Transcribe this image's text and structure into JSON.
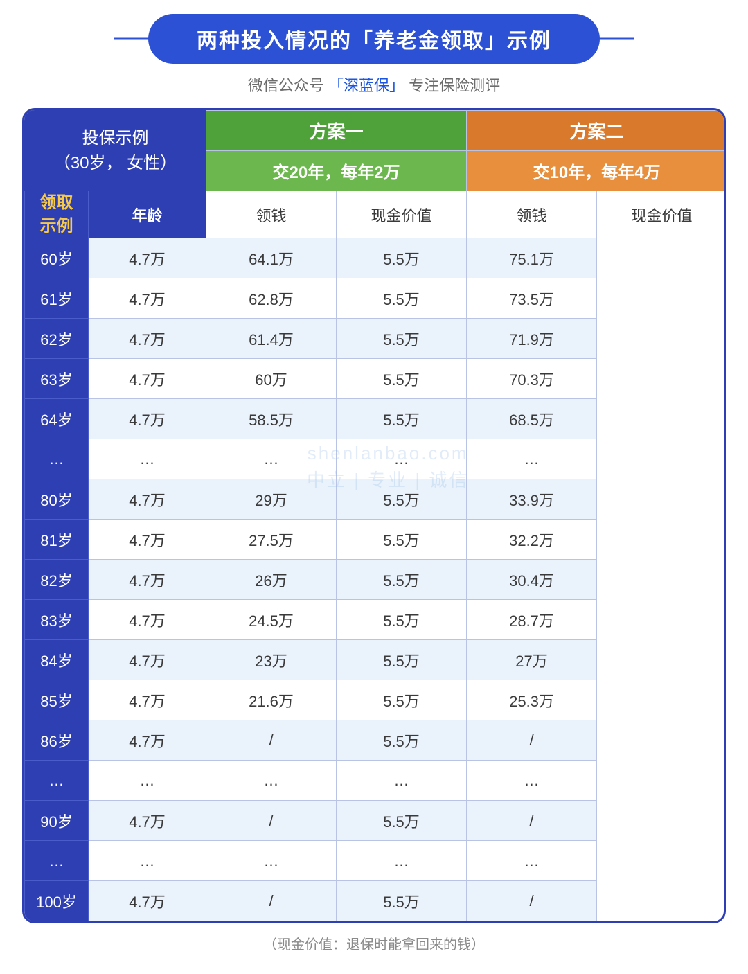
{
  "title": "两种投入情况的「养老金领取」示例",
  "subtitle_prefix": "微信公众号",
  "subtitle_brand": "「深蓝保」",
  "subtitle_suffix": "专注保险测评",
  "header": {
    "example_label_line1": "投保示例",
    "example_label_line2": "（30岁， 女性）",
    "plan1_name": "方案一",
    "plan1_desc": "交20年，每年2万",
    "plan2_name": "方案二",
    "plan2_desc": "交10年，每年4万",
    "side_label_line1": "领取",
    "side_label_line2": "示例",
    "col_age": "年龄",
    "col_receive": "领钱",
    "col_cash": "现金价值"
  },
  "colors": {
    "accent_blue": "#2d3fb3",
    "plan1_top": "#4fa13a",
    "plan1_sub": "#6cb84e",
    "plan2_top": "#d8792b",
    "plan2_sub": "#e88f3d",
    "row_alt_bg": "#eaf2fb",
    "side_text": "#f7c948",
    "border": "#b9c3e4"
  },
  "rows": [
    {
      "age": "60岁",
      "p1_receive": "4.7万",
      "p1_cash": "64.1万",
      "p2_receive": "5.5万",
      "p2_cash": "75.1万"
    },
    {
      "age": "61岁",
      "p1_receive": "4.7万",
      "p1_cash": "62.8万",
      "p2_receive": "5.5万",
      "p2_cash": "73.5万"
    },
    {
      "age": "62岁",
      "p1_receive": "4.7万",
      "p1_cash": "61.4万",
      "p2_receive": "5.5万",
      "p2_cash": "71.9万"
    },
    {
      "age": "63岁",
      "p1_receive": "4.7万",
      "p1_cash": "60万",
      "p2_receive": "5.5万",
      "p2_cash": "70.3万"
    },
    {
      "age": "64岁",
      "p1_receive": "4.7万",
      "p1_cash": "58.5万",
      "p2_receive": "5.5万",
      "p2_cash": "68.5万"
    },
    {
      "age": "…",
      "p1_receive": "…",
      "p1_cash": "…",
      "p2_receive": "…",
      "p2_cash": "…"
    },
    {
      "age": "80岁",
      "p1_receive": "4.7万",
      "p1_cash": "29万",
      "p2_receive": "5.5万",
      "p2_cash": "33.9万"
    },
    {
      "age": "81岁",
      "p1_receive": "4.7万",
      "p1_cash": "27.5万",
      "p2_receive": "5.5万",
      "p2_cash": "32.2万"
    },
    {
      "age": "82岁",
      "p1_receive": "4.7万",
      "p1_cash": "26万",
      "p2_receive": "5.5万",
      "p2_cash": "30.4万"
    },
    {
      "age": "83岁",
      "p1_receive": "4.7万",
      "p1_cash": "24.5万",
      "p2_receive": "5.5万",
      "p2_cash": "28.7万"
    },
    {
      "age": "84岁",
      "p1_receive": "4.7万",
      "p1_cash": "23万",
      "p2_receive": "5.5万",
      "p2_cash": "27万"
    },
    {
      "age": "85岁",
      "p1_receive": "4.7万",
      "p1_cash": "21.6万",
      "p2_receive": "5.5万",
      "p2_cash": "25.3万"
    },
    {
      "age": "86岁",
      "p1_receive": "4.7万",
      "p1_cash": "/",
      "p2_receive": "5.5万",
      "p2_cash": "/"
    },
    {
      "age": "…",
      "p1_receive": "…",
      "p1_cash": "…",
      "p2_receive": "…",
      "p2_cash": "…"
    },
    {
      "age": "90岁",
      "p1_receive": "4.7万",
      "p1_cash": "/",
      "p2_receive": "5.5万",
      "p2_cash": "/"
    },
    {
      "age": "…",
      "p1_receive": "…",
      "p1_cash": "…",
      "p2_receive": "…",
      "p2_cash": "…"
    },
    {
      "age": "100岁",
      "p1_receive": "4.7万",
      "p1_cash": "/",
      "p2_receive": "5.5万",
      "p2_cash": "/"
    }
  ],
  "watermark_line1": "shenlanbao.com",
  "watermark_line2": "中立 | 专业 | 诚信",
  "footnote": "（现金价值：退保时能拿回来的钱）"
}
